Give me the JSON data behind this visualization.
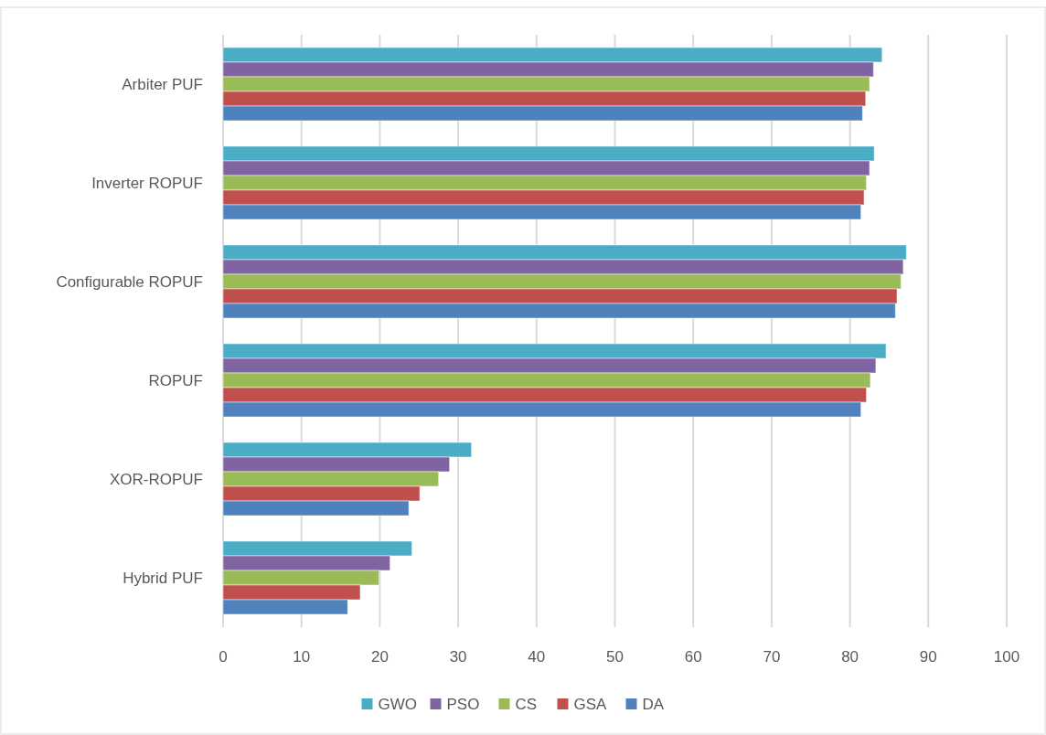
{
  "chart_data": {
    "type": "bar",
    "orientation": "horizontal",
    "categories": [
      "Arbiter PUF",
      "Inverter ROPUF",
      "Configurable ROPUF",
      "ROPUF",
      "XOR-ROPUF",
      "Hybrid PUF"
    ],
    "series": [
      {
        "name": "GWO",
        "color": "#4bacc6",
        "values": [
          84.1,
          83.1,
          87.2,
          84.6,
          31.7,
          24.1
        ]
      },
      {
        "name": "PSO",
        "color": "#8064a2",
        "values": [
          83.0,
          82.5,
          86.8,
          83.3,
          28.9,
          21.3
        ]
      },
      {
        "name": "CS",
        "color": "#9bbb59",
        "values": [
          82.5,
          82.1,
          86.5,
          82.6,
          27.5,
          19.9
        ]
      },
      {
        "name": "GSA",
        "color": "#c0504d",
        "values": [
          82.0,
          81.8,
          86.0,
          82.1,
          25.1,
          17.5
        ]
      },
      {
        "name": "DA",
        "color": "#4f81bd",
        "values": [
          81.6,
          81.4,
          85.8,
          81.4,
          23.7,
          15.9
        ]
      }
    ],
    "xlim": [
      0,
      100
    ],
    "xticks": [
      0,
      10,
      20,
      30,
      40,
      50,
      60,
      70,
      80,
      90,
      100
    ],
    "grid": "x",
    "legend": "bottom"
  }
}
